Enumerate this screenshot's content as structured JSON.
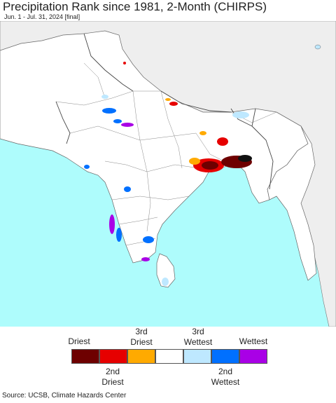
{
  "title": "Precipitation Rank since 1981, 2-Month (CHIRPS)",
  "subtitle": "Jun. 1 - Jul. 31, 2024 [final]",
  "map": {
    "ocean_color": "#aefcfc",
    "land_color": "#ffffff",
    "outside_color": "#eeeeee"
  },
  "legend": {
    "top_labels": [
      {
        "line1": "",
        "line2": "Driest"
      },
      {
        "line1": "3rd",
        "line2": "Driest"
      },
      {
        "line1": "3rd",
        "line2": "Wettest"
      },
      {
        "line1": "",
        "line2": "Wettest"
      }
    ],
    "bottom_labels": [
      {
        "line1": "2nd",
        "line2": "Driest"
      },
      {
        "line1": "2nd",
        "line2": "Wettest"
      }
    ],
    "colors": [
      "#6e0000",
      "#e60000",
      "#ffaa00",
      "#ffffff",
      "#bee8ff",
      "#0070ff",
      "#a900e6"
    ]
  },
  "source": "Source: UCSB, Climate Hazards Center"
}
